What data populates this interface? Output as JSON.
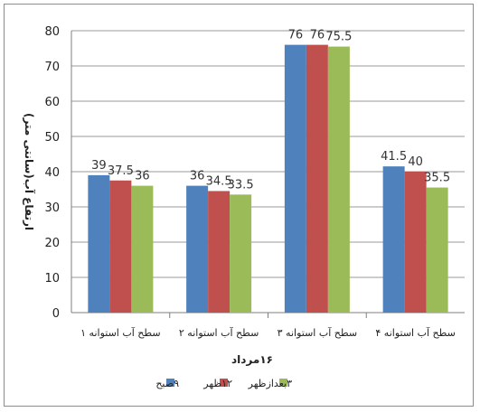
{
  "chart_data": {
    "type": "bar",
    "categories": [
      "سطح آب استوانه ۱",
      "سطح آب استوانه ۲",
      "سطح آب استوانه ۳",
      "سطح آب استوانه ۴"
    ],
    "series": [
      {
        "name": "۹صبح",
        "values": [
          39,
          36,
          76,
          41.5
        ],
        "labels": [
          "39",
          "36",
          "76",
          "41.5"
        ],
        "color": "#4f81bd"
      },
      {
        "name": "۱۲ظهر",
        "values": [
          37.5,
          34.5,
          76,
          40
        ],
        "labels": [
          "37.5",
          "34.5",
          "76",
          "40"
        ],
        "color": "#c0504d"
      },
      {
        "name": "۳بعدازظهر",
        "values": [
          36,
          33.5,
          75.5,
          35.5
        ],
        "labels": [
          "36",
          "33.5",
          "75.5",
          "35.5"
        ],
        "color": "#9bbb59"
      }
    ],
    "ylim": [
      0,
      80
    ],
    "yticks": [
      0,
      10,
      20,
      30,
      40,
      50,
      60,
      70,
      80
    ],
    "xlabel": "۱۶مرداد",
    "ylabel": "ارتفاع آب(سانتی متر)",
    "grid": true,
    "legend_position": "bottom"
  }
}
